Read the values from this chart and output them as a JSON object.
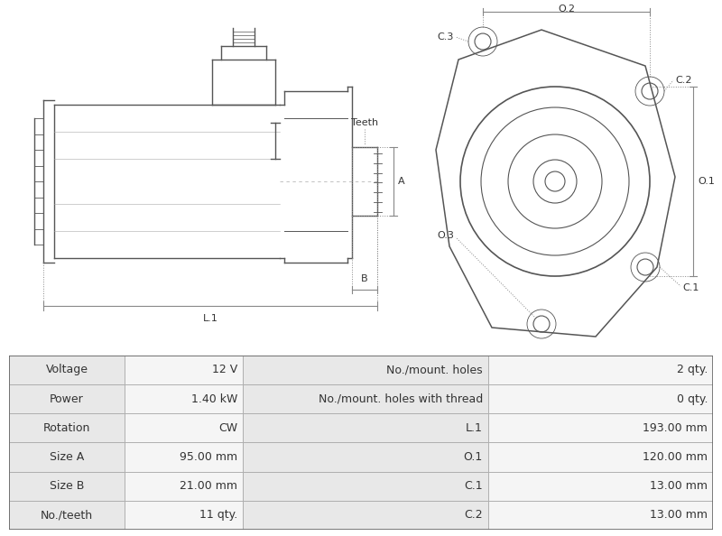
{
  "title": "",
  "bg_color": "#ffffff",
  "drawing_bg": "#ffffff",
  "table_bg_even": "#e8e8e8",
  "table_bg_odd": "#f5f5f5",
  "table_border": "#aaaaaa",
  "table_data": [
    [
      "Voltage",
      "12 V",
      "No./mount. holes",
      "2 qty."
    ],
    [
      "Power",
      "1.40 kW",
      "No./mount. holes with thread",
      "0 qty."
    ],
    [
      "Rotation",
      "CW",
      "L.1",
      "193.00 mm"
    ],
    [
      "Size A",
      "95.00 mm",
      "O.1",
      "120.00 mm"
    ],
    [
      "Size B",
      "21.00 mm",
      "C.1",
      "13.00 mm"
    ],
    [
      "No./teeth",
      "11 qty.",
      "C.2",
      "13.00 mm"
    ]
  ],
  "line_color": "#555555",
  "dim_line_color": "#888888",
  "annotation_color": "#333333",
  "font_size_table": 9,
  "font_size_label": 8
}
